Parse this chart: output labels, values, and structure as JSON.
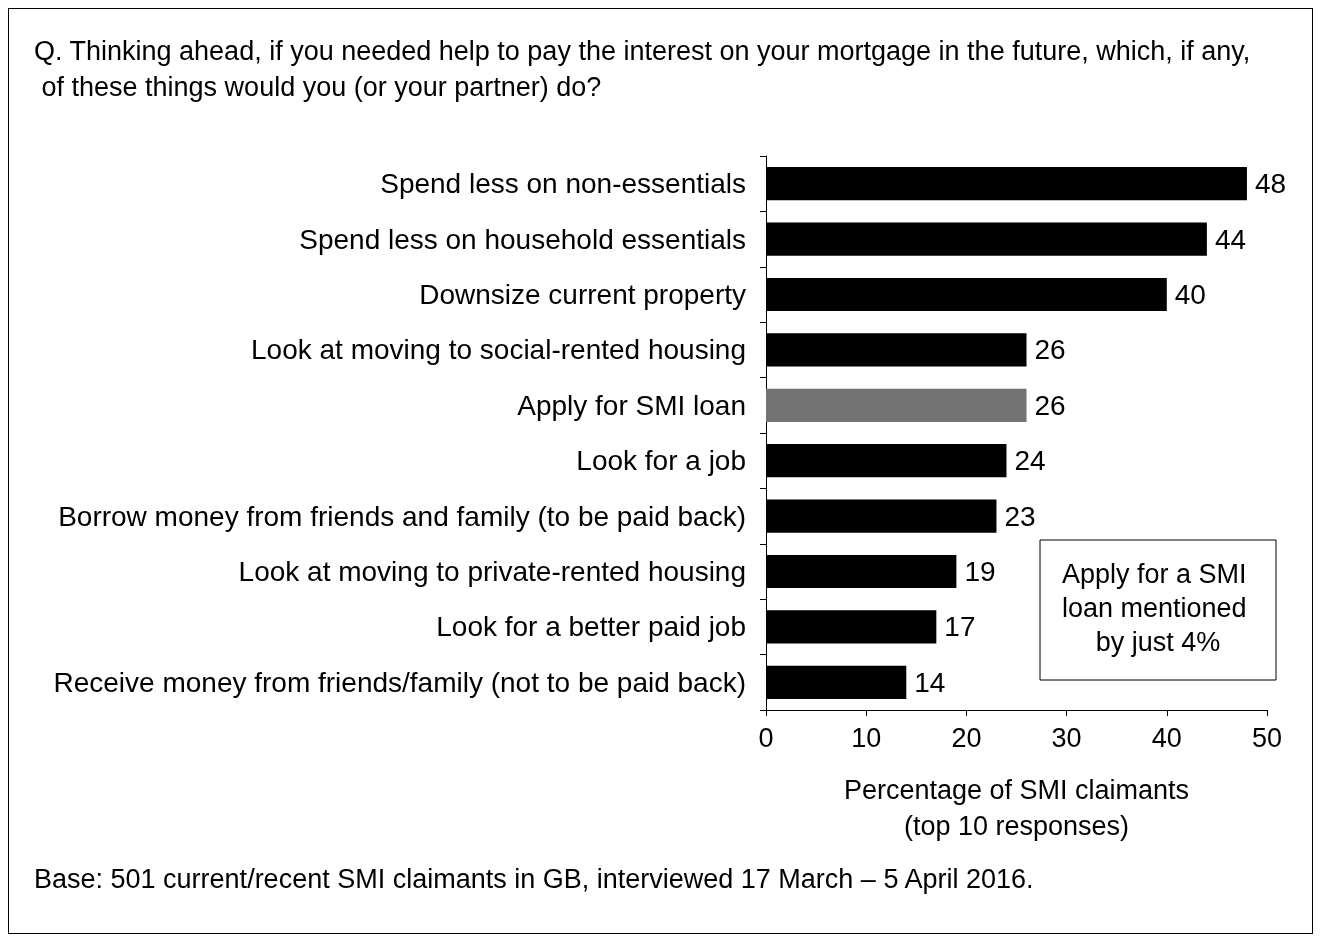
{
  "chart_data": {
    "type": "bar",
    "orientation": "horizontal",
    "title": "Q. Thinking ahead, if you needed help to pay the interest on your mortgage in the future, which, if any, of these things would you (or your partner) do?",
    "categories": [
      "Spend less on non-essentials",
      "Spend less on household essentials",
      "Downsize current property",
      "Look at moving to social-rented housing",
      "Apply for SMI loan",
      "Look for a job",
      "Borrow money from friends and family (to be paid back)",
      "Look at moving to private-rented housing",
      "Look for a better paid job",
      "Receive money from friends/family (not to be paid back)"
    ],
    "values": [
      48,
      44,
      40,
      26,
      26,
      24,
      23,
      19,
      17,
      14
    ],
    "colors": [
      "#000000",
      "#000000",
      "#000000",
      "#000000",
      "#737373",
      "#000000",
      "#000000",
      "#000000",
      "#000000",
      "#000000"
    ],
    "xlabel": "Percentage of SMI claimants\n(top 10 responses)",
    "xlim": [
      0,
      50
    ],
    "xticks": [
      0,
      10,
      20,
      30,
      40,
      50
    ],
    "grid": false,
    "data_labels": true,
    "annotations": [
      "Apply for a SMI loan mentioned by just 4%",
      "Base: 501 current/recent SMI claimants in GB, interviewed 17 March – 5 April 2016."
    ]
  }
}
